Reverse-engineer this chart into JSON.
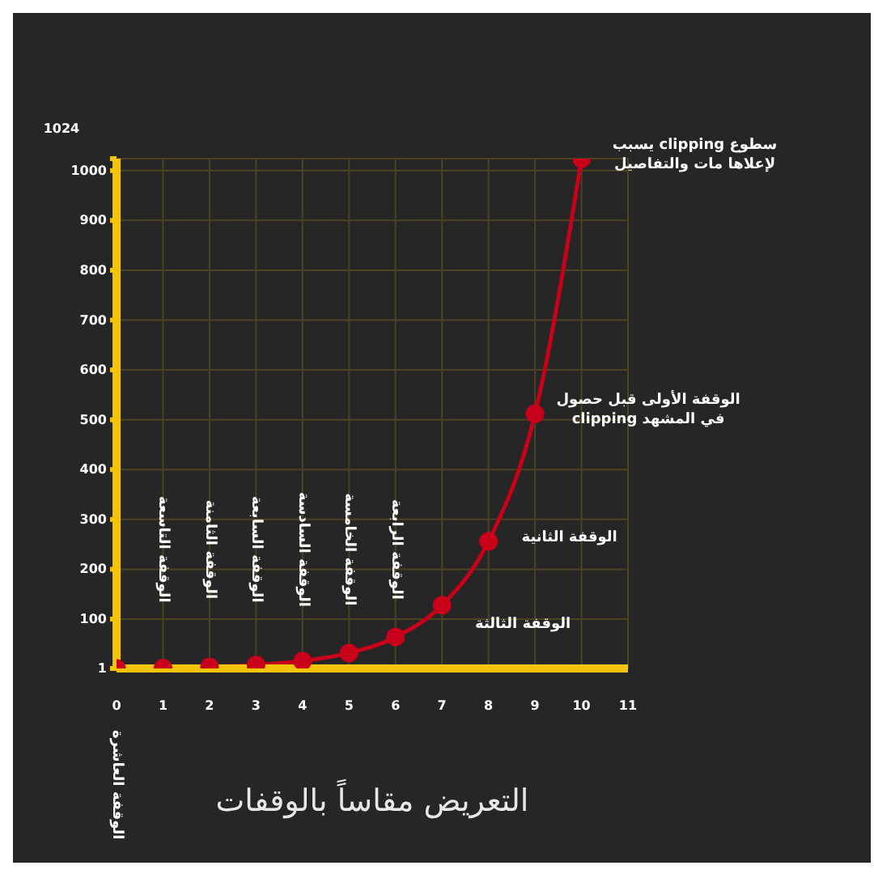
{
  "chart_data": {
    "type": "line",
    "xlabel": "التعريض مقاساً بالوقفات",
    "ylabel": "1024",
    "x": [
      0,
      1,
      2,
      3,
      4,
      5,
      6,
      7,
      8,
      9,
      10
    ],
    "series": [
      {
        "color": "#c8001a",
        "values": [
          1,
          2,
          4,
          8,
          16,
          32,
          64,
          128,
          256,
          512,
          1024
        ]
      }
    ],
    "xlim": [
      0,
      11
    ],
    "xticks": [
      0,
      1,
      2,
      3,
      4,
      5,
      6,
      7,
      8,
      9,
      10,
      11
    ],
    "ylim": [
      1,
      1024
    ],
    "yticks": [
      1,
      100,
      200,
      300,
      400,
      500,
      600,
      700,
      800,
      900,
      1000,
      {
        "value": 1024,
        "label": null
      }
    ],
    "grid": true,
    "marker": "circle",
    "line_style": "solid",
    "annotations": [
      "الوقفة العاشرة",
      "الوقفة التاسعة",
      "الوقفة الثامنة",
      "الوقفة السابعة",
      "الوقفة السادسة",
      "الوقفة الخامسة",
      "الوقفة الرابعة",
      {
        "text": "الوقفة الثالثة",
        "x": 7,
        "y": 128
      },
      {
        "text": "الوقفة الثانية",
        "x": 8,
        "y": 256
      },
      {
        "text": "الوقفة الأولى قبل حصول clipping في المشهد",
        "x": 9,
        "y": 512
      },
      {
        "text": "يسبب clipping سطوع لإعلاها مات والتفاصيل",
        "x": 10,
        "y": 1024
      }
    ]
  }
}
